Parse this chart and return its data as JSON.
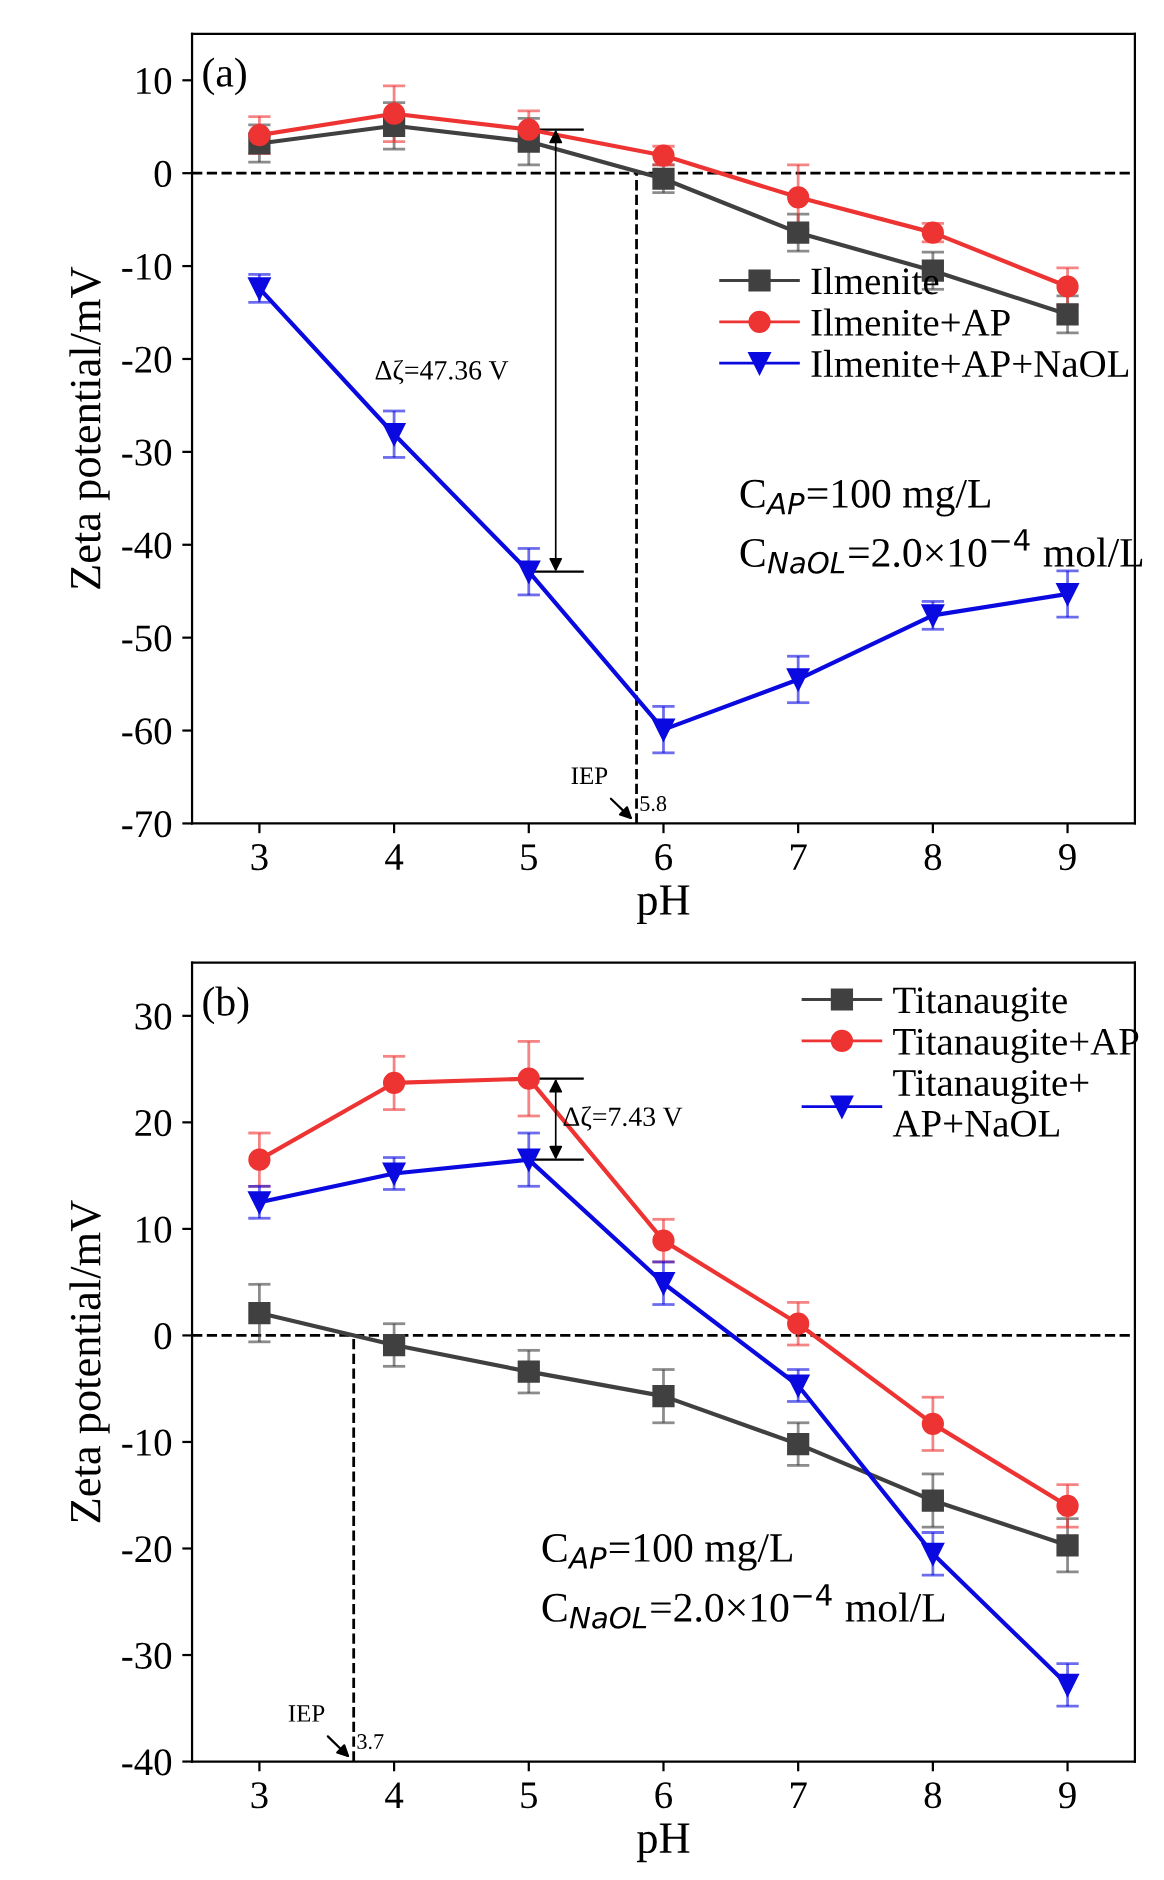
{
  "chart_data": [
    {
      "type": "line",
      "xlabel": "pH",
      "ylabel": "Zeta potential/mV",
      "x": [
        3,
        4,
        5,
        6,
        7,
        8,
        9
      ],
      "xlim": [
        2.5,
        9.5
      ],
      "xticks": [
        3,
        4,
        5,
        6,
        7,
        8,
        9
      ],
      "ylim": [
        -70,
        15
      ],
      "yticks": [
        -70,
        -60,
        -50,
        -40,
        -30,
        -20,
        -10,
        0,
        10
      ],
      "legend": "right",
      "grid": false,
      "series": [
        {
          "name": "Ilmenite",
          "color": "#404040",
          "marker": "square",
          "values": [
            3.2,
            5.1,
            3.4,
            -0.6,
            -6.4,
            -10.5,
            -15.2
          ],
          "errors": [
            2,
            2.5,
            2.5,
            1.5,
            2,
            2,
            2
          ]
        },
        {
          "name": "Ilmenite+AP",
          "color": "#ee3333",
          "marker": "circle",
          "values": [
            4.1,
            6.4,
            4.7,
            1.9,
            -2.6,
            -6.4,
            -12.2
          ],
          "errors": [
            2,
            3,
            2,
            1,
            3.5,
            1,
            2
          ]
        },
        {
          "name": "Ilmenite+AP+NaOL",
          "color": "#0a0ae0",
          "marker": "triangle",
          "values": [
            -12.4,
            -28.1,
            -42.9,
            -59.9,
            -54.5,
            -47.6,
            -45.3
          ],
          "errors": [
            1.5,
            2.5,
            2.5,
            2.5,
            2.5,
            1.5,
            2.5
          ]
        }
      ],
      "ref_lines": [
        {
          "axis": "y",
          "value": 0,
          "line_style": "dashed"
        },
        {
          "axis": "x",
          "value": 5.8,
          "label": "5.8",
          "line_style": "dashed"
        }
      ],
      "annotations": [
        "(a)",
        "Δζ=47.36 V",
        "IEP",
        "C$_{AP}$=100 mg/L",
        "C$_{NaOL}$=2.0×10$^{−4}$ mol/L"
      ]
    },
    {
      "type": "line",
      "xlabel": "pH",
      "ylabel": "Zeta potential/mV",
      "x": [
        3,
        4,
        5,
        6,
        7,
        8,
        9
      ],
      "xlim": [
        2.5,
        9.5
      ],
      "xticks": [
        3,
        4,
        5,
        6,
        7,
        8,
        9
      ],
      "ylim": [
        -40,
        35
      ],
      "yticks": [
        -40,
        -30,
        -20,
        -10,
        0,
        10,
        20,
        30
      ],
      "legend": "top right",
      "grid": false,
      "series": [
        {
          "name": "Titanaugite",
          "color": "#404040",
          "marker": "square",
          "values": [
            2.1,
            -0.9,
            -3.4,
            -5.7,
            -10.2,
            -15.5,
            -19.7
          ],
          "errors": [
            2.7,
            2,
            2,
            2.5,
            2,
            2.5,
            2.5
          ]
        },
        {
          "name": "Titanaugite+AP",
          "color": "#ee3333",
          "marker": "circle",
          "values": [
            16.5,
            23.7,
            24.1,
            8.9,
            1.1,
            -8.3,
            -16.0
          ],
          "errors": [
            2.5,
            2.5,
            3.5,
            2,
            2,
            2.5,
            2
          ]
        },
        {
          "name": "Titanaugite+\nAP+NaOL",
          "color": "#0a0ae0",
          "marker": "triangle",
          "values": [
            12.5,
            15.2,
            16.5,
            4.9,
            -4.7,
            -20.5,
            -32.8
          ],
          "errors": [
            1.5,
            1.5,
            2.5,
            2,
            1.5,
            2,
            2
          ]
        }
      ],
      "ref_lines": [
        {
          "axis": "y",
          "value": 0,
          "line_style": "dashed"
        },
        {
          "axis": "x",
          "value": 3.7,
          "label": "3.7",
          "line_style": "dashed"
        }
      ],
      "annotations": [
        "(b)",
        "Δζ=7.43 V",
        "IEP",
        "C$_{AP}$=100 mg/L",
        "C$_{NaOL}$=2.0×10$^{−4}$ mol/L"
      ]
    }
  ]
}
